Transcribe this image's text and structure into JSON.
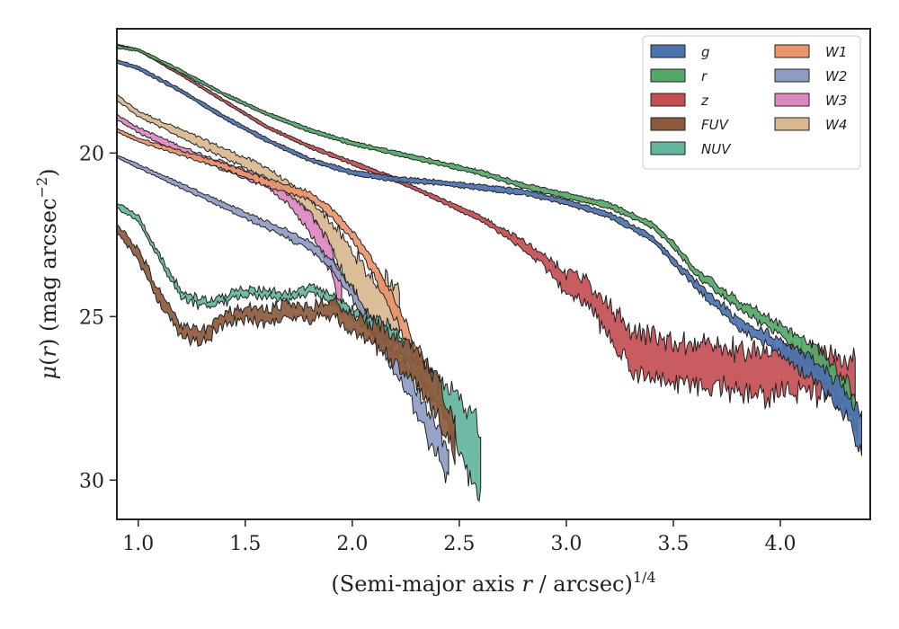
{
  "chart_data": {
    "type": "area",
    "xlabel": "(Semi-major axis r / arcsec)^{1/4}",
    "xlabel_parts": {
      "pre": "(Semi-major axis ",
      "var": "r",
      "mid": " / arcsec)",
      "sup": "1/4"
    },
    "ylabel": "μ(r) (mag arcsec^{−2})",
    "ylabel_parts": {
      "mu": "μ",
      "open": "(",
      "var": "r",
      "close": ")",
      "unit": " (mag arcsec",
      "sup": "−2",
      "end": ")"
    },
    "xlim": [
      0.9,
      4.42
    ],
    "ylim": [
      31.2,
      16.2
    ],
    "y_inverted": true,
    "xticks": [
      1.0,
      1.5,
      2.0,
      2.5,
      3.0,
      3.5,
      4.0
    ],
    "xtick_labels": [
      "1.0",
      "1.5",
      "2.0",
      "2.5",
      "3.0",
      "3.5",
      "4.0"
    ],
    "yticks": [
      20,
      25,
      30
    ],
    "ytick_labels": [
      "20",
      "25",
      "30"
    ],
    "grid": false,
    "legend_position": "top-right",
    "legend_columns": 2,
    "series": [
      {
        "name": "g",
        "color": "#4c72b0",
        "noise": 0.15,
        "points": [
          [
            0.9,
            17.2
          ],
          [
            1.0,
            17.4
          ],
          [
            1.2,
            18.1
          ],
          [
            1.4,
            18.9
          ],
          [
            1.6,
            19.6
          ],
          [
            1.8,
            20.2
          ],
          [
            2.0,
            20.6
          ],
          [
            2.2,
            20.8
          ],
          [
            2.4,
            20.9
          ],
          [
            2.6,
            21.05
          ],
          [
            2.8,
            21.2
          ],
          [
            3.0,
            21.5
          ],
          [
            3.2,
            21.9
          ],
          [
            3.4,
            22.6
          ],
          [
            3.5,
            23.3
          ],
          [
            3.6,
            24.0
          ],
          [
            3.7,
            24.6
          ],
          [
            3.8,
            25.2
          ],
          [
            4.0,
            25.9
          ],
          [
            4.2,
            26.9
          ],
          [
            4.3,
            27.6
          ],
          [
            4.38,
            28.6
          ]
        ],
        "width": [
          [
            0.9,
            0.1
          ],
          [
            3.5,
            0.18
          ],
          [
            4.0,
            0.4
          ],
          [
            4.38,
            1.0
          ]
        ]
      },
      {
        "name": "r",
        "color": "#55a868",
        "noise": 0.15,
        "points": [
          [
            0.9,
            16.75
          ],
          [
            1.0,
            16.85
          ],
          [
            1.2,
            17.5
          ],
          [
            1.4,
            18.2
          ],
          [
            1.6,
            18.8
          ],
          [
            1.8,
            19.3
          ],
          [
            2.0,
            19.7
          ],
          [
            2.2,
            20.0
          ],
          [
            2.4,
            20.3
          ],
          [
            2.6,
            20.6
          ],
          [
            2.8,
            21.0
          ],
          [
            3.0,
            21.3
          ],
          [
            3.2,
            21.6
          ],
          [
            3.4,
            22.2
          ],
          [
            3.5,
            22.8
          ],
          [
            3.6,
            23.6
          ],
          [
            3.8,
            24.6
          ],
          [
            4.0,
            25.4
          ],
          [
            4.1,
            25.9
          ],
          [
            4.2,
            26.5
          ],
          [
            4.3,
            27.3
          ],
          [
            4.36,
            28.1
          ]
        ],
        "width": [
          [
            0.9,
            0.08
          ],
          [
            3.5,
            0.18
          ],
          [
            4.0,
            0.35
          ],
          [
            4.36,
            1.0
          ]
        ]
      },
      {
        "name": "z",
        "color": "#c44e52",
        "noise": 0.3,
        "points": [
          [
            0.9,
            16.7
          ],
          [
            1.0,
            16.85
          ],
          [
            1.2,
            17.6
          ],
          [
            1.4,
            18.4
          ],
          [
            1.6,
            19.2
          ],
          [
            1.8,
            19.8
          ],
          [
            2.0,
            20.3
          ],
          [
            2.2,
            20.8
          ],
          [
            2.4,
            21.4
          ],
          [
            2.6,
            22.0
          ],
          [
            2.8,
            22.8
          ],
          [
            2.9,
            23.3
          ],
          [
            3.0,
            24.0
          ],
          [
            3.1,
            24.3
          ],
          [
            3.3,
            26.0
          ],
          [
            3.5,
            26.5
          ],
          [
            3.7,
            26.5
          ],
          [
            3.9,
            26.8
          ],
          [
            4.1,
            26.6
          ],
          [
            4.3,
            26.9
          ],
          [
            4.35,
            26.8
          ]
        ],
        "width": [
          [
            0.9,
            0.06
          ],
          [
            2.6,
            0.15
          ],
          [
            2.9,
            0.35
          ],
          [
            3.3,
            1.2
          ],
          [
            4.35,
            1.3
          ]
        ]
      },
      {
        "name": "FUV",
        "color": "#8c5a3c",
        "noise": 0.25,
        "points": [
          [
            0.9,
            22.3
          ],
          [
            1.0,
            23.1
          ],
          [
            1.1,
            24.4
          ],
          [
            1.2,
            25.5
          ],
          [
            1.3,
            25.6
          ],
          [
            1.4,
            25.1
          ],
          [
            1.5,
            24.9
          ],
          [
            1.6,
            25.0
          ],
          [
            1.7,
            24.8
          ],
          [
            1.8,
            24.9
          ],
          [
            1.9,
            24.7
          ],
          [
            2.0,
            25.2
          ],
          [
            2.1,
            25.5
          ],
          [
            2.2,
            26.0
          ],
          [
            2.3,
            26.6
          ],
          [
            2.4,
            27.5
          ],
          [
            2.48,
            28.6
          ]
        ],
        "width": [
          [
            0.9,
            0.35
          ],
          [
            1.4,
            0.35
          ],
          [
            2.0,
            0.5
          ],
          [
            2.48,
            1.2
          ]
        ]
      },
      {
        "name": "NUV",
        "color": "#64b5a0",
        "noise": 0.25,
        "points": [
          [
            0.9,
            21.6
          ],
          [
            1.0,
            22.0
          ],
          [
            1.1,
            23.2
          ],
          [
            1.2,
            24.3
          ],
          [
            1.3,
            24.6
          ],
          [
            1.4,
            24.5
          ],
          [
            1.5,
            24.2
          ],
          [
            1.6,
            24.3
          ],
          [
            1.7,
            24.4
          ],
          [
            1.8,
            24.2
          ],
          [
            1.9,
            24.4
          ],
          [
            2.0,
            24.9
          ],
          [
            2.2,
            25.6
          ],
          [
            2.3,
            26.6
          ],
          [
            2.4,
            27.4
          ],
          [
            2.5,
            28.2
          ],
          [
            2.6,
            29.6
          ]
        ],
        "width": [
          [
            0.9,
            0.18
          ],
          [
            2.0,
            0.25
          ],
          [
            2.4,
            0.7
          ],
          [
            2.6,
            2.3
          ]
        ]
      },
      {
        "name": "W1",
        "color": "#e8956b",
        "noise": 0.15,
        "points": [
          [
            0.9,
            19.3
          ],
          [
            1.0,
            19.6
          ],
          [
            1.2,
            20.0
          ],
          [
            1.4,
            20.4
          ],
          [
            1.6,
            20.9
          ],
          [
            1.8,
            21.3
          ],
          [
            1.9,
            21.8
          ],
          [
            2.0,
            22.5
          ],
          [
            2.1,
            23.5
          ],
          [
            2.2,
            24.8
          ],
          [
            2.3,
            26.2
          ],
          [
            2.38,
            27.2
          ]
        ],
        "width": [
          [
            0.9,
            0.1
          ],
          [
            2.0,
            0.3
          ],
          [
            2.38,
            0.8
          ]
        ]
      },
      {
        "name": "W2",
        "color": "#8f9cc2",
        "noise": 0.2,
        "points": [
          [
            0.9,
            20.1
          ],
          [
            1.0,
            20.4
          ],
          [
            1.2,
            21.0
          ],
          [
            1.4,
            21.6
          ],
          [
            1.6,
            22.2
          ],
          [
            1.8,
            22.8
          ],
          [
            1.9,
            23.4
          ],
          [
            2.0,
            24.3
          ],
          [
            2.1,
            25.4
          ],
          [
            2.2,
            26.4
          ],
          [
            2.3,
            27.6
          ],
          [
            2.4,
            28.8
          ],
          [
            2.45,
            29.5
          ]
        ],
        "width": [
          [
            0.9,
            0.1
          ],
          [
            2.0,
            0.3
          ],
          [
            2.45,
            1.0
          ]
        ]
      },
      {
        "name": "W3",
        "color": "#dc88c1",
        "noise": 0.2,
        "points": [
          [
            0.9,
            18.9
          ],
          [
            1.0,
            19.3
          ],
          [
            1.2,
            19.9
          ],
          [
            1.4,
            20.4
          ],
          [
            1.6,
            20.9
          ],
          [
            1.7,
            21.4
          ],
          [
            1.8,
            22.1
          ],
          [
            1.9,
            23.2
          ],
          [
            1.95,
            24.4
          ]
        ],
        "width": [
          [
            0.9,
            0.15
          ],
          [
            1.7,
            0.3
          ],
          [
            1.95,
            1.0
          ]
        ]
      },
      {
        "name": "W4",
        "color": "#d8b88e",
        "noise": 0.2,
        "points": [
          [
            0.9,
            18.3
          ],
          [
            1.0,
            18.8
          ],
          [
            1.2,
            19.4
          ],
          [
            1.4,
            20.0
          ],
          [
            1.6,
            20.6
          ],
          [
            1.8,
            21.6
          ],
          [
            1.9,
            22.5
          ],
          [
            2.0,
            23.6
          ],
          [
            2.1,
            24.6
          ],
          [
            2.22,
            24.8
          ]
        ],
        "width": [
          [
            0.9,
            0.15
          ],
          [
            1.8,
            0.4
          ],
          [
            2.0,
            1.2
          ],
          [
            2.22,
            1.8
          ]
        ]
      }
    ]
  }
}
